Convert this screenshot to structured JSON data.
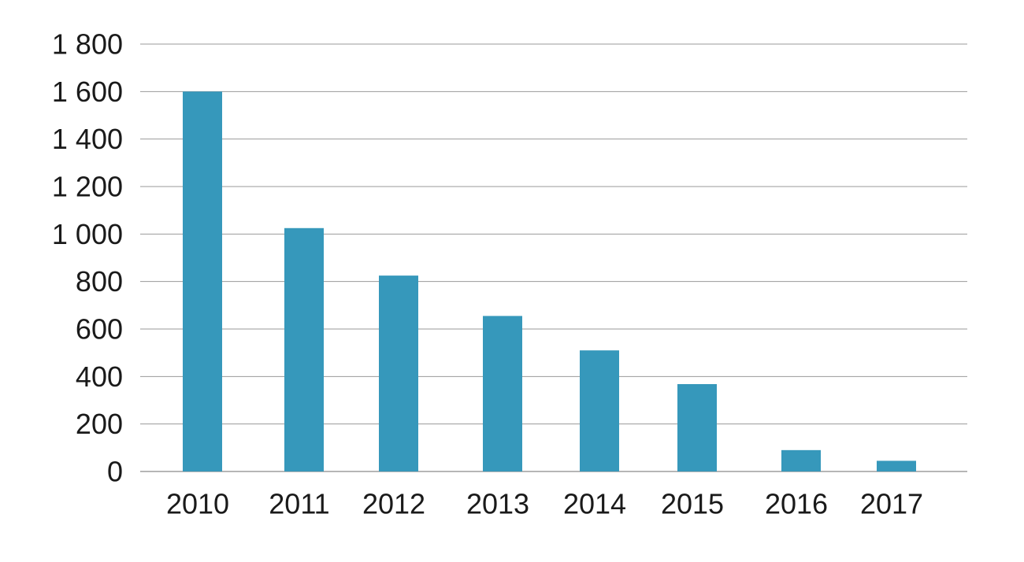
{
  "chart_data": {
    "type": "bar",
    "categories": [
      "2010",
      "2011",
      "2012",
      "2013",
      "2014",
      "2015",
      "2016",
      "2017"
    ],
    "values": [
      1600,
      1025,
      825,
      655,
      510,
      368,
      90,
      45
    ],
    "ylim": [
      0,
      1800
    ],
    "yticks": [
      0,
      200,
      400,
      600,
      800,
      1000,
      1200,
      1400,
      1600,
      1800
    ],
    "ytick_labels": [
      "0",
      "200",
      "400",
      "600",
      "800",
      "1 000",
      "1 200",
      "1 400",
      "1 600",
      "1 800"
    ],
    "title": "",
    "xlabel": "",
    "ylabel": "",
    "grid": true,
    "legend": "none",
    "bar_color": "#3698bb"
  }
}
